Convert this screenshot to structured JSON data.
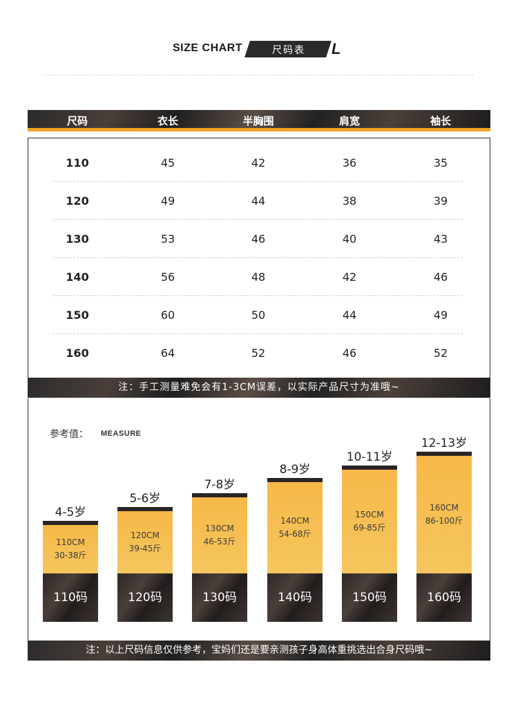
{
  "title": {
    "en": "SIZE CHART",
    "cn": "尺码表",
    "mark": "L"
  },
  "table": {
    "headers": [
      "尺码",
      "衣长",
      "半胸围",
      "肩宽",
      "袖长"
    ],
    "rows": [
      [
        "110",
        "45",
        "42",
        "36",
        "35"
      ],
      [
        "120",
        "49",
        "44",
        "38",
        "39"
      ],
      [
        "130",
        "53",
        "46",
        "40",
        "43"
      ],
      [
        "140",
        "56",
        "48",
        "42",
        "46"
      ],
      [
        "150",
        "60",
        "50",
        "44",
        "49"
      ],
      [
        "160",
        "64",
        "52",
        "46",
        "52"
      ]
    ]
  },
  "note1": "注：手工测量难免会有1-3CM误差，以实际产品尺寸为准哦~",
  "measure": {
    "label": "参考值：",
    "label_en": "MEASURE",
    "sizes": [
      {
        "age": "4-5岁",
        "height": "110CM",
        "weight": "30-38斤",
        "size": "110码"
      },
      {
        "age": "5-6岁",
        "height": "120CM",
        "weight": "39-45斤",
        "size": "120码"
      },
      {
        "age": "7-8岁",
        "height": "130CM",
        "weight": "46-53斤",
        "size": "130码"
      },
      {
        "age": "8-9岁",
        "height": "140CM",
        "weight": "54-68斤",
        "size": "140码"
      },
      {
        "age": "10-11岁",
        "height": "150CM",
        "weight": "69-85斤",
        "size": "150码"
      },
      {
        "age": "12-13岁",
        "height": "160CM",
        "weight": "86-100斤",
        "size": "160码"
      }
    ]
  },
  "note2": "注：以上尺码信息仅供参考，宝妈们还是要亲测孩子身高体重挑选出合身尺码哦~",
  "colors": {
    "accent": "#f2a224",
    "bar": "#f6b848",
    "dark": "#2b2b2b"
  }
}
